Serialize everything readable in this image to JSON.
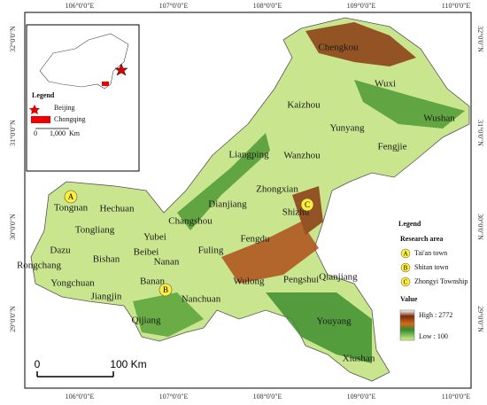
{
  "map": {
    "top_labels": [
      "106°0'0\"E",
      "107°0'0\"E",
      "108°0'0\"E",
      "109°0'0\"E",
      "110°0'0\"E"
    ],
    "bottom_labels": [
      "106°0'0\"E",
      "107°0'0\"E",
      "108°0'0\"E",
      "109°0'0\"E",
      "110°0'0\"E"
    ],
    "left_labels": [
      "32°0'0\"N",
      "31°0'0\"N",
      "30°0'0\"N",
      "29°0'0\"N"
    ],
    "right_labels": [
      "32°0'0\"N",
      "31°0'0\"N",
      "30°0'0\"N",
      "29°0'0\"N"
    ],
    "places": [
      "Chengkou",
      "Wuxi",
      "Kaizhou",
      "Wushan",
      "Yunyang",
      "Fengjie",
      "Liangping",
      "Wanzhou",
      "Zhongxian",
      "Dianjiang",
      "Shizhu",
      "Tongnan",
      "Hechuan",
      "Changshou",
      "Tongliang",
      "Yubei",
      "Fengdu",
      "Dazu",
      "Bishan",
      "Beibei",
      "Rongchang",
      "Yongchuan",
      "Nanan",
      "Fuling",
      "Jiangjin",
      "Banan",
      "Nanchuan",
      "Wulong",
      "Pengshui",
      "Qianjiang",
      "Qijiang",
      "Youyang",
      "Xiushan"
    ],
    "markers": [
      "A",
      "B",
      "C"
    ]
  },
  "inset": {
    "legend_title": "Legend",
    "items": [
      "Beijing",
      "Chongqing"
    ],
    "scale": [
      "0",
      "1,000",
      "Km"
    ]
  },
  "legend": {
    "title": "Legend",
    "research_title": "Research area",
    "research": [
      {
        "mark": "A",
        "label": "Tai'an town"
      },
      {
        "mark": "B",
        "label": "Shitan town"
      },
      {
        "mark": "C",
        "label": "Zhongyi Township"
      }
    ],
    "value_title": "Value",
    "high": "High : 2772",
    "low": "Low : 100"
  },
  "scale_bar": {
    "left": "0",
    "right": "100 Km"
  }
}
